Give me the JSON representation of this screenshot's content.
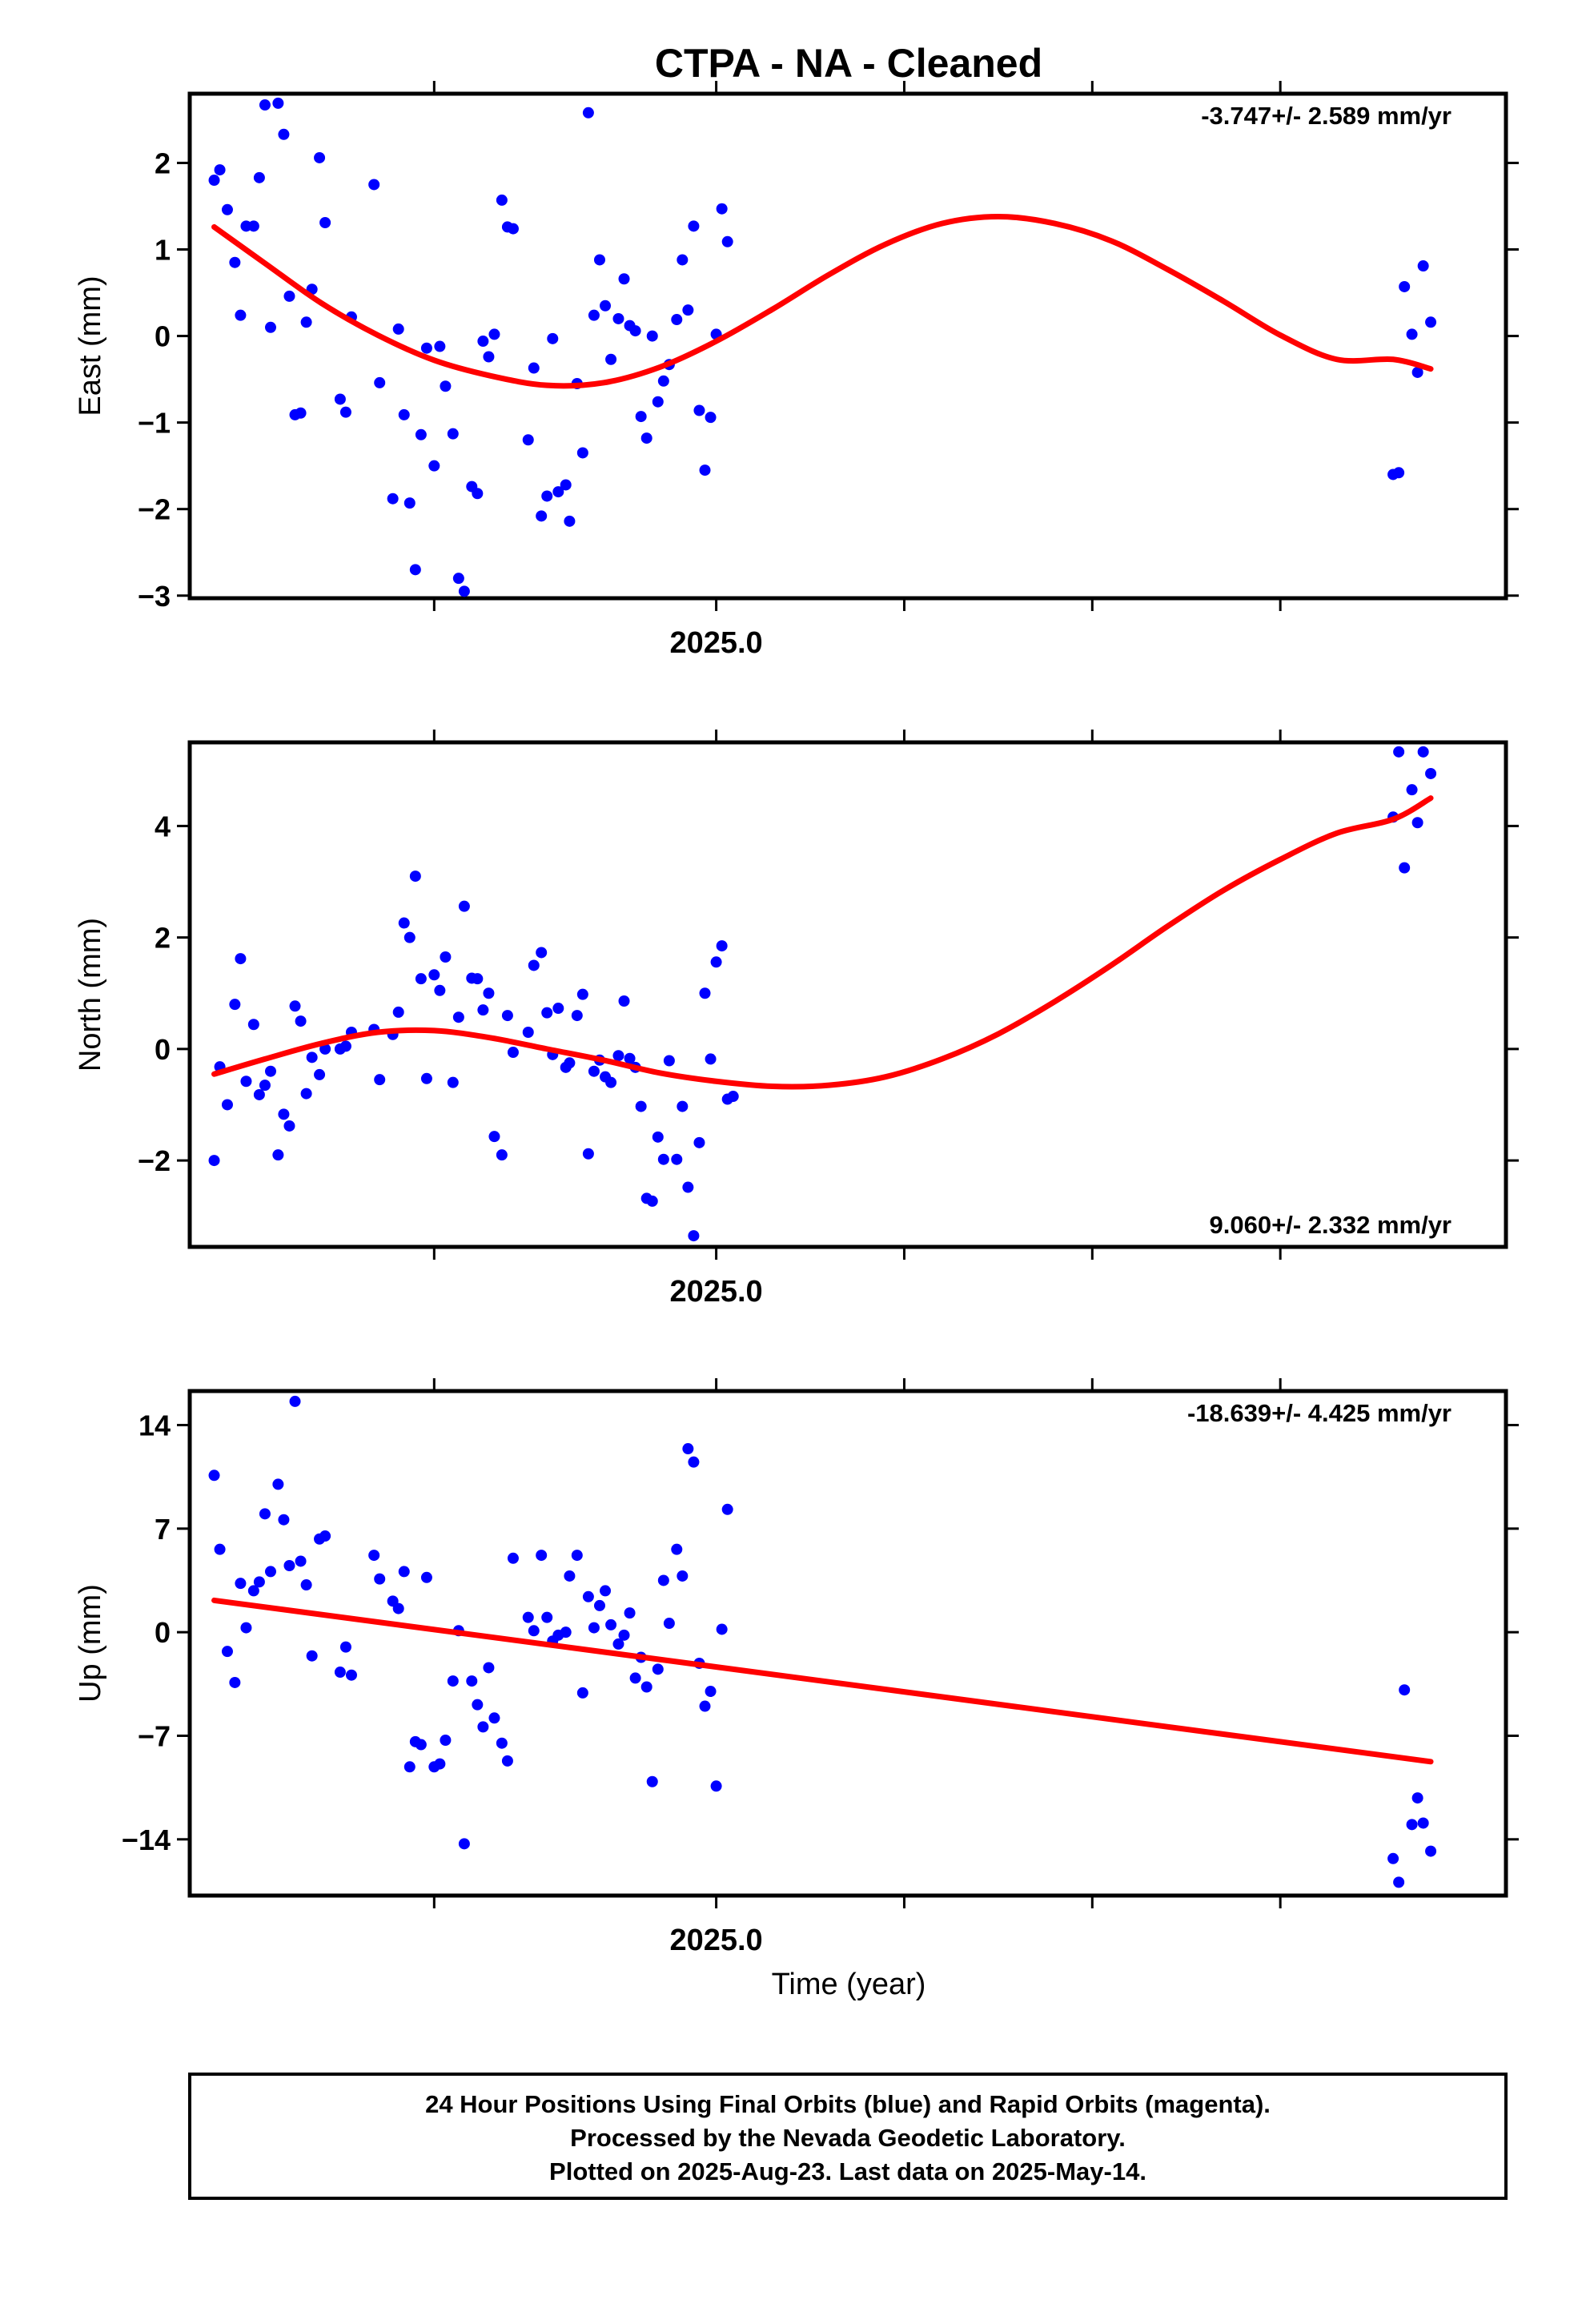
{
  "title": "CTPA  - NA - Cleaned",
  "xlabel": "Time (year)",
  "footer": {
    "line1": "24 Hour Positions Using Final Orbits (blue) and Rapid Orbits (magenta).",
    "line2": "Processed by the Nevada Geodetic Laboratory.",
    "line3": "Plotted on 2025-Aug-23. Last data on 2025-May-14."
  },
  "colors": {
    "points": "#0000ff",
    "fit": "#ff0000",
    "axes": "#000000"
  },
  "chart_data": [
    {
      "type": "scatter",
      "ylabel": "East (mm)",
      "rate": "-3.747+/- 2.589 mm/yr",
      "xlim": [
        2024.72,
        2025.42
      ],
      "ylim": [
        -3.03,
        2.8
      ],
      "yticks": [
        -3,
        -2,
        -1,
        0,
        1,
        2
      ],
      "ytick_labels": [
        "−3",
        "−2",
        "−1",
        "0",
        "1",
        "2"
      ],
      "xtick_labels": {
        "2025": "2025.0"
      },
      "points": [
        [
          2024.733,
          1.8
        ],
        [
          2024.736,
          1.92
        ],
        [
          2024.74,
          1.46
        ],
        [
          2024.744,
          0.85
        ],
        [
          2024.747,
          0.24
        ],
        [
          2024.75,
          1.27
        ],
        [
          2024.754,
          1.27
        ],
        [
          2024.757,
          1.83
        ],
        [
          2024.76,
          2.67
        ],
        [
          2024.763,
          0.1
        ],
        [
          2024.767,
          2.69
        ],
        [
          2024.77,
          2.33
        ],
        [
          2024.773,
          0.46
        ],
        [
          2024.776,
          -0.91
        ],
        [
          2024.779,
          -0.89
        ],
        [
          2024.782,
          0.16
        ],
        [
          2024.785,
          0.54
        ],
        [
          2024.789,
          2.06
        ],
        [
          2024.792,
          1.31
        ],
        [
          2024.8,
          -0.73
        ],
        [
          2024.803,
          -0.88
        ],
        [
          2024.806,
          0.22
        ],
        [
          2024.818,
          1.75
        ],
        [
          2024.821,
          -0.54
        ],
        [
          2024.828,
          -1.88
        ],
        [
          2024.831,
          0.08
        ],
        [
          2024.834,
          -0.91
        ],
        [
          2024.837,
          -1.93
        ],
        [
          2024.84,
          -2.7
        ],
        [
          2024.843,
          -1.14
        ],
        [
          2024.846,
          -0.14
        ],
        [
          2024.85,
          -1.5
        ],
        [
          2024.853,
          -0.12
        ],
        [
          2024.856,
          -0.58
        ],
        [
          2024.86,
          -1.13
        ],
        [
          2024.863,
          -2.8
        ],
        [
          2024.866,
          -2.95
        ],
        [
          2024.87,
          -1.74
        ],
        [
          2024.873,
          -1.82
        ],
        [
          2024.876,
          -0.06
        ],
        [
          2024.879,
          -0.24
        ],
        [
          2024.882,
          0.02
        ],
        [
          2024.886,
          1.57
        ],
        [
          2024.889,
          1.26
        ],
        [
          2024.892,
          1.24
        ],
        [
          2024.9,
          -1.2
        ],
        [
          2024.903,
          -0.37
        ],
        [
          2024.907,
          -2.08
        ],
        [
          2024.91,
          -1.85
        ],
        [
          2024.913,
          -0.03
        ],
        [
          2024.916,
          -1.8
        ],
        [
          2024.92,
          -1.72
        ],
        [
          2024.922,
          -2.14
        ],
        [
          2024.926,
          -0.55
        ],
        [
          2024.929,
          -1.35
        ],
        [
          2024.932,
          2.58
        ],
        [
          2024.935,
          0.24
        ],
        [
          2024.938,
          0.88
        ],
        [
          2024.941,
          0.35
        ],
        [
          2024.944,
          -0.27
        ],
        [
          2024.948,
          0.2
        ],
        [
          2024.951,
          0.66
        ],
        [
          2024.954,
          0.12
        ],
        [
          2024.957,
          0.06
        ],
        [
          2024.96,
          -0.93
        ],
        [
          2024.963,
          -1.18
        ],
        [
          2024.966,
          0.0
        ],
        [
          2024.969,
          -0.76
        ],
        [
          2024.972,
          -0.52
        ],
        [
          2024.975,
          -0.33
        ],
        [
          2024.979,
          0.19
        ],
        [
          2024.982,
          0.88
        ],
        [
          2024.985,
          0.3
        ],
        [
          2024.988,
          1.27
        ],
        [
          2024.991,
          -0.86
        ],
        [
          2024.994,
          -1.55
        ],
        [
          2024.997,
          -0.94
        ],
        [
          2025.0,
          0.02
        ],
        [
          2025.003,
          1.47
        ],
        [
          2025.006,
          1.09
        ],
        [
          2025.36,
          -1.6
        ],
        [
          2025.363,
          -1.58
        ],
        [
          2025.366,
          0.57
        ],
        [
          2025.37,
          0.02
        ],
        [
          2025.373,
          -0.42
        ],
        [
          2025.376,
          0.81
        ],
        [
          2025.38,
          0.16
        ]
      ],
      "fit": [
        [
          2024.733,
          1.26
        ],
        [
          2024.76,
          0.84
        ],
        [
          2024.79,
          0.38
        ],
        [
          2024.82,
          0.01
        ],
        [
          2024.85,
          -0.28
        ],
        [
          2024.88,
          -0.46
        ],
        [
          2024.91,
          -0.57
        ],
        [
          2024.94,
          -0.54
        ],
        [
          2024.97,
          -0.36
        ],
        [
          2025.0,
          -0.06
        ],
        [
          2025.03,
          0.31
        ],
        [
          2025.06,
          0.71
        ],
        [
          2025.09,
          1.06
        ],
        [
          2025.12,
          1.3
        ],
        [
          2025.15,
          1.38
        ],
        [
          2025.18,
          1.3
        ],
        [
          2025.21,
          1.1
        ],
        [
          2025.24,
          0.77
        ],
        [
          2025.27,
          0.4
        ],
        [
          2025.3,
          0.01
        ],
        [
          2025.33,
          -0.27
        ],
        [
          2025.36,
          -0.27
        ],
        [
          2025.38,
          -0.38
        ]
      ]
    },
    {
      "type": "scatter",
      "ylabel": "North (mm)",
      "rate": "9.060+/- 2.332 mm/yr",
      "xlim": [
        2024.72,
        2025.42
      ],
      "ylim": [
        -3.55,
        5.5
      ],
      "yticks": [
        -2,
        0,
        2,
        4
      ],
      "ytick_labels": [
        "−2",
        "0",
        "2",
        "4"
      ],
      "xtick_labels": {
        "2025": "2025.0"
      },
      "points": [
        [
          2024.733,
          -2.0
        ],
        [
          2024.736,
          -0.32
        ],
        [
          2024.74,
          -1.0
        ],
        [
          2024.744,
          0.8
        ],
        [
          2024.747,
          1.62
        ],
        [
          2024.75,
          -0.58
        ],
        [
          2024.754,
          0.44
        ],
        [
          2024.757,
          -0.82
        ],
        [
          2024.76,
          -0.65
        ],
        [
          2024.763,
          -0.4
        ],
        [
          2024.767,
          -1.9
        ],
        [
          2024.77,
          -1.17
        ],
        [
          2024.773,
          -1.38
        ],
        [
          2024.776,
          0.77
        ],
        [
          2024.779,
          0.5
        ],
        [
          2024.782,
          -0.8
        ],
        [
          2024.785,
          -0.15
        ],
        [
          2024.789,
          -0.46
        ],
        [
          2024.792,
          0.0
        ],
        [
          2024.8,
          0.0
        ],
        [
          2024.803,
          0.05
        ],
        [
          2024.806,
          0.3
        ],
        [
          2024.818,
          0.35
        ],
        [
          2024.821,
          -0.55
        ],
        [
          2024.828,
          0.26
        ],
        [
          2024.831,
          0.66
        ],
        [
          2024.834,
          2.26
        ],
        [
          2024.837,
          2.0
        ],
        [
          2024.84,
          3.1
        ],
        [
          2024.843,
          1.26
        ],
        [
          2024.846,
          -0.53
        ],
        [
          2024.85,
          1.33
        ],
        [
          2024.853,
          1.05
        ],
        [
          2024.856,
          1.65
        ],
        [
          2024.86,
          -0.6
        ],
        [
          2024.863,
          0.57
        ],
        [
          2024.866,
          2.56
        ],
        [
          2024.87,
          1.27
        ],
        [
          2024.873,
          1.26
        ],
        [
          2024.876,
          0.7
        ],
        [
          2024.879,
          1.0
        ],
        [
          2024.882,
          -1.57
        ],
        [
          2024.886,
          -1.9
        ],
        [
          2024.889,
          0.6
        ],
        [
          2024.892,
          -0.06
        ],
        [
          2024.9,
          0.3
        ],
        [
          2024.903,
          1.5
        ],
        [
          2024.907,
          1.73
        ],
        [
          2024.91,
          0.65
        ],
        [
          2024.913,
          -0.1
        ],
        [
          2024.916,
          0.73
        ],
        [
          2024.92,
          -0.33
        ],
        [
          2024.922,
          -0.25
        ],
        [
          2024.926,
          0.6
        ],
        [
          2024.929,
          0.98
        ],
        [
          2024.932,
          -1.88
        ],
        [
          2024.935,
          -0.4
        ],
        [
          2024.938,
          -0.2
        ],
        [
          2024.941,
          -0.5
        ],
        [
          2024.944,
          -0.6
        ],
        [
          2024.948,
          -0.12
        ],
        [
          2024.951,
          0.86
        ],
        [
          2024.954,
          -0.17
        ],
        [
          2024.957,
          -0.33
        ],
        [
          2024.96,
          -1.03
        ],
        [
          2024.963,
          -2.68
        ],
        [
          2024.966,
          -2.73
        ],
        [
          2024.969,
          -1.58
        ],
        [
          2024.972,
          -1.98
        ],
        [
          2024.975,
          -0.21
        ],
        [
          2024.979,
          -1.98
        ],
        [
          2024.982,
          -1.03
        ],
        [
          2024.985,
          -2.48
        ],
        [
          2024.988,
          -3.35
        ],
        [
          2024.991,
          -1.68
        ],
        [
          2024.994,
          1.0
        ],
        [
          2024.997,
          -0.18
        ],
        [
          2025.0,
          1.56
        ],
        [
          2025.003,
          1.85
        ],
        [
          2025.006,
          -0.9
        ],
        [
          2025.009,
          -0.85
        ],
        [
          2025.36,
          4.16
        ],
        [
          2025.363,
          5.33
        ],
        [
          2025.366,
          3.25
        ],
        [
          2025.37,
          4.65
        ],
        [
          2025.373,
          4.06
        ],
        [
          2025.376,
          5.33
        ],
        [
          2025.38,
          4.94
        ]
      ],
      "fit": [
        [
          2024.733,
          -0.45
        ],
        [
          2024.76,
          -0.18
        ],
        [
          2024.79,
          0.1
        ],
        [
          2024.82,
          0.3
        ],
        [
          2024.85,
          0.33
        ],
        [
          2024.88,
          0.2
        ],
        [
          2024.91,
          0.0
        ],
        [
          2024.94,
          -0.2
        ],
        [
          2024.97,
          -0.43
        ],
        [
          2025.0,
          -0.58
        ],
        [
          2025.03,
          -0.67
        ],
        [
          2025.06,
          -0.65
        ],
        [
          2025.09,
          -0.5
        ],
        [
          2025.12,
          -0.18
        ],
        [
          2025.15,
          0.27
        ],
        [
          2025.18,
          0.85
        ],
        [
          2025.21,
          1.5
        ],
        [
          2025.24,
          2.2
        ],
        [
          2025.27,
          2.85
        ],
        [
          2025.3,
          3.4
        ],
        [
          2025.33,
          3.87
        ],
        [
          2025.36,
          4.12
        ],
        [
          2025.38,
          4.5
        ]
      ]
    },
    {
      "type": "scatter",
      "ylabel": "Up (mm)",
      "rate": "-18.639+/- 4.425 mm/yr",
      "xlim": [
        2024.72,
        2025.42
      ],
      "ylim": [
        -17.8,
        16.3
      ],
      "yticks": [
        -14,
        -7,
        0,
        7,
        14
      ],
      "ytick_labels": [
        "−14",
        "−7",
        "0",
        "7",
        "14"
      ],
      "xtick_labels": {
        "2025": "2025.0"
      },
      "points": [
        [
          2024.733,
          10.6
        ],
        [
          2024.736,
          5.6
        ],
        [
          2024.74,
          -1.3
        ],
        [
          2024.744,
          -3.4
        ],
        [
          2024.747,
          3.3
        ],
        [
          2024.75,
          0.3
        ],
        [
          2024.754,
          2.8
        ],
        [
          2024.757,
          3.4
        ],
        [
          2024.76,
          8.0
        ],
        [
          2024.763,
          4.1
        ],
        [
          2024.767,
          10.0
        ],
        [
          2024.77,
          7.6
        ],
        [
          2024.773,
          4.5
        ],
        [
          2024.776,
          15.6
        ],
        [
          2024.779,
          4.8
        ],
        [
          2024.782,
          3.2
        ],
        [
          2024.785,
          -1.6
        ],
        [
          2024.789,
          6.3
        ],
        [
          2024.792,
          6.5
        ],
        [
          2024.8,
          -2.7
        ],
        [
          2024.803,
          -1.0
        ],
        [
          2024.806,
          -2.9
        ],
        [
          2024.818,
          5.2
        ],
        [
          2024.821,
          3.6
        ],
        [
          2024.828,
          2.1
        ],
        [
          2024.831,
          1.6
        ],
        [
          2024.834,
          4.1
        ],
        [
          2024.837,
          -9.1
        ],
        [
          2024.84,
          -7.4
        ],
        [
          2024.843,
          -7.6
        ],
        [
          2024.846,
          3.7
        ],
        [
          2024.85,
          -9.1
        ],
        [
          2024.853,
          -8.9
        ],
        [
          2024.856,
          -7.3
        ],
        [
          2024.86,
          -3.3
        ],
        [
          2024.863,
          0.1
        ],
        [
          2024.866,
          -14.3
        ],
        [
          2024.87,
          -3.3
        ],
        [
          2024.873,
          -4.9
        ],
        [
          2024.876,
          -6.4
        ],
        [
          2024.879,
          -2.4
        ],
        [
          2024.882,
          -5.8
        ],
        [
          2024.886,
          -7.5
        ],
        [
          2024.889,
          -8.7
        ],
        [
          2024.892,
          5.0
        ],
        [
          2024.9,
          1.0
        ],
        [
          2024.903,
          0.1
        ],
        [
          2024.907,
          5.2
        ],
        [
          2024.91,
          1.0
        ],
        [
          2024.913,
          -0.6
        ],
        [
          2024.916,
          -0.2
        ],
        [
          2024.92,
          0.0
        ],
        [
          2024.922,
          3.8
        ],
        [
          2024.926,
          5.2
        ],
        [
          2024.929,
          -4.1
        ],
        [
          2024.932,
          2.4
        ],
        [
          2024.935,
          0.3
        ],
        [
          2024.938,
          1.8
        ],
        [
          2024.941,
          2.8
        ],
        [
          2024.944,
          0.5
        ],
        [
          2024.948,
          -0.8
        ],
        [
          2024.951,
          -0.2
        ],
        [
          2024.954,
          1.3
        ],
        [
          2024.957,
          -3.1
        ],
        [
          2024.96,
          -1.7
        ],
        [
          2024.963,
          -3.7
        ],
        [
          2024.966,
          -10.1
        ],
        [
          2024.969,
          -2.5
        ],
        [
          2024.972,
          3.5
        ],
        [
          2024.975,
          0.6
        ],
        [
          2024.979,
          5.6
        ],
        [
          2024.982,
          3.8
        ],
        [
          2024.985,
          12.4
        ],
        [
          2024.988,
          11.5
        ],
        [
          2024.991,
          -2.1
        ],
        [
          2024.994,
          -5.0
        ],
        [
          2024.997,
          -4.0
        ],
        [
          2025.0,
          -10.4
        ],
        [
          2025.003,
          0.2
        ],
        [
          2025.006,
          8.3
        ],
        [
          2025.36,
          -15.3
        ],
        [
          2025.363,
          -16.9
        ],
        [
          2025.366,
          -3.9
        ],
        [
          2025.37,
          -13.0
        ],
        [
          2025.373,
          -11.2
        ],
        [
          2025.376,
          -12.9
        ],
        [
          2025.38,
          -14.8
        ]
      ],
      "fit": [
        [
          2024.733,
          2.15
        ],
        [
          2025.38,
          -8.75
        ]
      ]
    }
  ]
}
